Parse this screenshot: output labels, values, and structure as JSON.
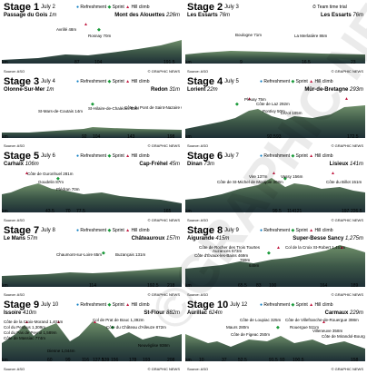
{
  "legend": {
    "refreshment": "Refreshment",
    "sprint": "Sprint",
    "hill": "Hill climb",
    "ttt": "Team time trial"
  },
  "source": "Source: ASO",
  "credit": "© GRAPHIC NEWS",
  "km_label": "km",
  "watermark": "©GRAPHIC NEWS",
  "stages": [
    {
      "name": "Stage 1",
      "date": "July 2",
      "start": "Passage du Gois",
      "start_alt": "1m",
      "finish": "Mont des Alouettes",
      "finish_alt": "226m",
      "legend": "full",
      "labels": [
        "Avrillé 48m",
        "Rosnay 70m"
      ],
      "km": [
        "km",
        "87",
        "104",
        "191.5"
      ]
    },
    {
      "name": "Stage 2",
      "date": "July 3",
      "start": "Les Essarts",
      "start_alt": "76m",
      "finish": "Les Essarts",
      "finish_alt": "76m",
      "legend": "ttt",
      "labels": [
        "Boulogne 71m",
        "La Merlatière 86m"
      ],
      "km": [
        "km",
        "9",
        "16.5",
        "23"
      ]
    },
    {
      "name": "Stage 3",
      "date": "July 4",
      "start": "Olonne-Sur-Mer",
      "start_alt": "1m",
      "finish": "Redon",
      "finish_alt": "31m",
      "legend": "full",
      "labels": [
        "St-Mars-de-Coutais 14m",
        "St-Hilaire-de-Chaléons 55m",
        "Côte du Pont de Saint-Nazaire 66m"
      ],
      "km": [
        "km",
        "92",
        "104",
        "143",
        "198"
      ]
    },
    {
      "name": "Stage 4",
      "date": "July 5",
      "start": "Lorient",
      "start_alt": "22m",
      "finish": "Mûr-de-Bretagne",
      "finish_alt": "293m",
      "legend": "full",
      "labels": [
        "Plouay 75m",
        "Côte de Laz 292m",
        "Pontivy 50m",
        "Lézot 105m"
      ],
      "km": [
        "km",
        "92.5",
        "93",
        "172.5"
      ]
    },
    {
      "name": "Stage 5",
      "date": "July 6",
      "start": "Carhaix",
      "start_alt": "106m",
      "finish": "Cap-Fréhel",
      "finish_alt": "45m",
      "legend": "full",
      "labels": [
        "Côte de Guronhuel 281m",
        "Goudelin 87m",
        "Plédran 70m"
      ],
      "km": [
        "km",
        "43.5",
        "70",
        "77.5",
        "165"
      ]
    },
    {
      "name": "Stage 6",
      "date": "July 7",
      "start": "Dinan",
      "start_alt": "73m",
      "finish": "Lisieux",
      "finish_alt": "141m",
      "legend": "full",
      "labels": [
        "Vire 137m",
        "Vassy 156m",
        "Côte de St-Michel de Montjoie 308m",
        "Côte du Billot 151m"
      ],
      "km": [
        "km",
        "99.5",
        "114",
        "121",
        "197",
        "226.5"
      ]
    },
    {
      "name": "Stage 7",
      "date": "July 8",
      "start": "Le Mans",
      "start_alt": "57m",
      "finish": "Châteauroux",
      "finish_alt": "157m",
      "legend": "full",
      "labels": [
        "Chaumont-sur-Loire 65m",
        "Buzançais 131m"
      ],
      "km": [
        "km",
        "114",
        "192.5",
        "218"
      ]
    },
    {
      "name": "Stage 8",
      "date": "July 9",
      "start": "Aigurande",
      "start_alt": "415m",
      "finish": "Super-Besse Sancy",
      "finish_alt": "1,275m",
      "legend": "full",
      "labels": [
        "Côte de Rocher des Trois Tourtes",
        "Auzances 573m",
        "Côte d'Évaux-les-Bains 469m",
        "769m",
        "649m",
        "Col de la Croix St-Robert 1,451m"
      ],
      "km": [
        "km",
        "65.5",
        "83",
        "100",
        "164",
        "189"
      ]
    },
    {
      "name": "Stage 9",
      "date": "July 10",
      "start": "Issoire",
      "start_alt": "410m",
      "finish": "St-Flour",
      "finish_alt": "882m",
      "legend": "full",
      "labels": [
        "Côte de la Croix-Morand 1,401m",
        "Col du Perthus 1,309m",
        "Col du Pas de Peyrol 1,589m",
        "Côte de Massiac 774m",
        "Dienne 1,044m",
        "Col de Prat de Bouc 1,392m",
        "Côte du Château d'Alleuze 872m",
        "Neuvéglise 938m"
      ],
      "km": [
        "km",
        "60",
        "99",
        "116",
        "127.5",
        "139",
        "156",
        "178",
        "193",
        "208"
      ]
    },
    {
      "name": "Stage 10",
      "date": "July 12",
      "start": "Aurillac",
      "start_alt": "624m",
      "finish": "Carmaux",
      "finish_alt": "229m",
      "legend": "full",
      "labels": [
        "Côte de Loupiac 325m",
        "Côte de Villefranche-de-Rouergue 398m",
        "Maurs 280m",
        "Rouergue 511m",
        "Côte de Figeac 250m",
        "Villeneuve 358m",
        "Côte de Mirandol-Bourgnounac 413m"
      ],
      "km": [
        "km",
        "10",
        "37",
        "52.5",
        "91.5",
        "93",
        "100.5",
        "158"
      ]
    }
  ]
}
